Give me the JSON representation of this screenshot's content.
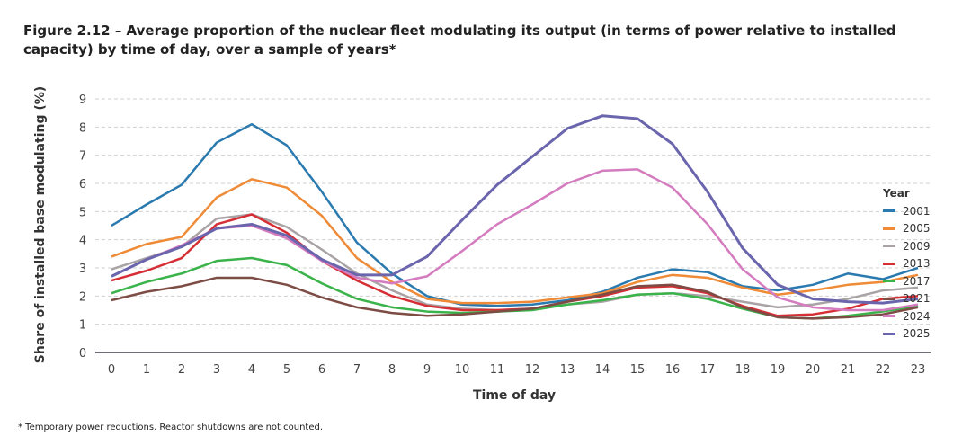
{
  "title": "Figure 2.12 – Average proportion of the nuclear fleet modulating its output (in terms of power relative to installed capacity) by time of day, over a sample of years*",
  "footnote": "* Temporary power reductions. Reactor shutdowns are not counted.",
  "chart_data": {
    "type": "line",
    "xlabel": "Time of day",
    "ylabel": "Share of installed base modulating (%)",
    "ylim": [
      0,
      9
    ],
    "yticks": [
      0,
      1,
      2,
      3,
      4,
      5,
      6,
      7,
      8,
      9
    ],
    "grid": "horizontal dashed",
    "legend_title": "Year",
    "legend_position": "right",
    "x": [
      0,
      1,
      2,
      3,
      4,
      5,
      6,
      7,
      8,
      9,
      10,
      11,
      12,
      13,
      14,
      15,
      16,
      17,
      18,
      19,
      20,
      21,
      22,
      23
    ],
    "series": [
      {
        "name": "2001",
        "color": "#2a7ab0",
        "values": [
          4.5,
          5.25,
          5.95,
          7.45,
          8.1,
          7.35,
          5.7,
          3.9,
          2.8,
          2.0,
          1.7,
          1.65,
          1.7,
          1.85,
          2.15,
          2.65,
          2.95,
          2.85,
          2.35,
          2.2,
          2.4,
          2.8,
          2.6,
          3.0
        ]
      },
      {
        "name": "2005",
        "color": "#ef8a36",
        "values": [
          3.4,
          3.85,
          4.1,
          5.5,
          6.15,
          5.85,
          4.85,
          3.35,
          2.5,
          1.9,
          1.75,
          1.75,
          1.8,
          1.95,
          2.1,
          2.5,
          2.75,
          2.65,
          2.3,
          2.05,
          2.2,
          2.4,
          2.5,
          2.75
        ]
      },
      {
        "name": "2009",
        "color": "#aaa3a5",
        "values": [
          2.95,
          3.35,
          3.75,
          4.75,
          4.9,
          4.45,
          3.65,
          2.8,
          2.2,
          1.7,
          1.55,
          1.5,
          1.55,
          1.7,
          1.8,
          2.05,
          2.1,
          2.0,
          1.8,
          1.6,
          1.7,
          1.9,
          2.2,
          2.3
        ]
      },
      {
        "name": "2013",
        "color": "#d62e35",
        "values": [
          2.55,
          2.9,
          3.35,
          4.55,
          4.9,
          4.25,
          3.25,
          2.55,
          2.0,
          1.65,
          1.5,
          1.5,
          1.55,
          1.8,
          2.0,
          2.3,
          2.35,
          2.1,
          1.65,
          1.3,
          1.35,
          1.55,
          1.9,
          2.0
        ]
      },
      {
        "name": "2017",
        "color": "#3ab34a",
        "values": [
          2.1,
          2.5,
          2.8,
          3.25,
          3.35,
          3.1,
          2.45,
          1.9,
          1.6,
          1.45,
          1.4,
          1.45,
          1.5,
          1.7,
          1.85,
          2.05,
          2.1,
          1.9,
          1.55,
          1.25,
          1.2,
          1.3,
          1.45,
          1.65
        ]
      },
      {
        "name": "2021",
        "color": "#7d4c45",
        "values": [
          1.85,
          2.15,
          2.35,
          2.65,
          2.65,
          2.4,
          1.95,
          1.6,
          1.4,
          1.3,
          1.35,
          1.45,
          1.55,
          1.8,
          2.05,
          2.35,
          2.4,
          2.15,
          1.6,
          1.25,
          1.2,
          1.25,
          1.35,
          1.6
        ]
      },
      {
        "name": "2024",
        "color": "#d47cbf",
        "values": [
          2.7,
          3.3,
          3.8,
          4.4,
          4.5,
          4.05,
          3.25,
          2.65,
          2.45,
          2.7,
          3.6,
          4.55,
          5.25,
          6.0,
          6.45,
          6.5,
          5.85,
          4.55,
          2.95,
          1.95,
          1.6,
          1.5,
          1.5,
          1.7
        ]
      },
      {
        "name": "2025",
        "color": "#6a65ad",
        "values": [
          2.7,
          3.3,
          3.75,
          4.4,
          4.55,
          4.15,
          3.3,
          2.75,
          2.75,
          3.4,
          4.7,
          5.95,
          6.95,
          7.95,
          8.4,
          8.3,
          7.4,
          5.7,
          3.7,
          2.4,
          1.9,
          1.8,
          1.75,
          1.9
        ]
      }
    ]
  }
}
